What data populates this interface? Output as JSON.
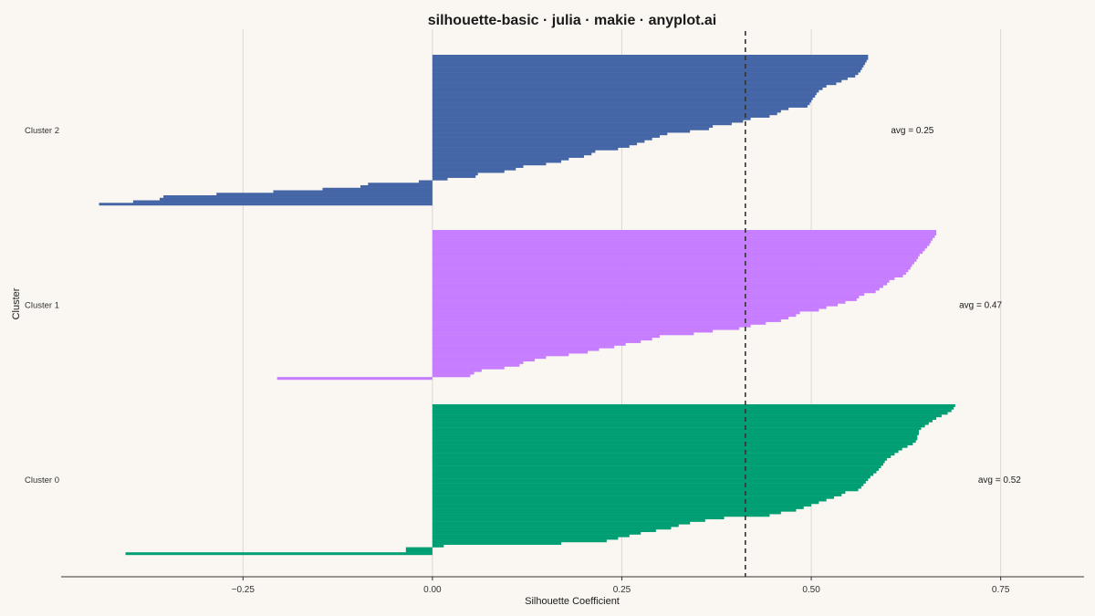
{
  "chart_data": {
    "type": "bar",
    "orientation": "horizontal",
    "title": "silhouette-basic · julia · makie · anyplot.ai",
    "xlabel": "Silhouette Coefficient",
    "ylabel": "Cluster",
    "xlim": [
      -0.49,
      0.86
    ],
    "xticks": [
      -0.25,
      0.0,
      0.25,
      0.5,
      0.75
    ],
    "xtick_labels": [
      "−0.25",
      "0.00",
      "0.25",
      "0.50",
      "0.75"
    ],
    "grid": "vertical",
    "overall_average": 0.413,
    "clusters": [
      {
        "label": "Cluster 2",
        "color": "#4466A6",
        "avg_label": "avg = 0.25",
        "values": [
          0.575,
          0.575,
          0.573,
          0.571,
          0.569,
          0.567,
          0.565,
          0.562,
          0.558,
          0.548,
          0.54,
          0.533,
          0.52,
          0.515,
          0.51,
          0.507,
          0.505,
          0.502,
          0.5,
          0.498,
          0.495,
          0.47,
          0.46,
          0.455,
          0.445,
          0.42,
          0.41,
          0.395,
          0.37,
          0.365,
          0.34,
          0.31,
          0.3,
          0.29,
          0.28,
          0.27,
          0.26,
          0.245,
          0.215,
          0.21,
          0.2,
          0.18,
          0.17,
          0.15,
          0.12,
          0.11,
          0.095,
          0.06,
          0.057,
          0.02,
          -0.018,
          -0.085,
          -0.095,
          -0.145,
          -0.21,
          -0.285,
          -0.355,
          -0.36,
          -0.395,
          -0.44
        ]
      },
      {
        "label": "Cluster 1",
        "color": "#C77DFF",
        "avg_label": "avg = 0.47",
        "values": [
          0.665,
          0.665,
          0.663,
          0.66,
          0.658,
          0.656,
          0.653,
          0.65,
          0.647,
          0.643,
          0.641,
          0.639,
          0.636,
          0.633,
          0.631,
          0.628,
          0.625,
          0.621,
          0.61,
          0.603,
          0.6,
          0.595,
          0.59,
          0.585,
          0.57,
          0.563,
          0.56,
          0.545,
          0.535,
          0.52,
          0.51,
          0.485,
          0.48,
          0.47,
          0.46,
          0.44,
          0.42,
          0.405,
          0.37,
          0.345,
          0.3,
          0.29,
          0.275,
          0.255,
          0.24,
          0.22,
          0.205,
          0.18,
          0.15,
          0.135,
          0.12,
          0.115,
          0.095,
          0.065,
          0.055,
          0.05,
          -0.205
        ]
      },
      {
        "label": "Cluster 0",
        "color": "#009E73",
        "avg_label": "avg = 0.52",
        "values": [
          0.69,
          0.688,
          0.685,
          0.68,
          0.672,
          0.665,
          0.66,
          0.655,
          0.65,
          0.645,
          0.642,
          0.642,
          0.64,
          0.64,
          0.638,
          0.634,
          0.627,
          0.62,
          0.615,
          0.61,
          0.605,
          0.6,
          0.597,
          0.595,
          0.592,
          0.589,
          0.586,
          0.582,
          0.578,
          0.575,
          0.572,
          0.569,
          0.566,
          0.562,
          0.545,
          0.54,
          0.53,
          0.52,
          0.51,
          0.5,
          0.49,
          0.48,
          0.46,
          0.445,
          0.385,
          0.36,
          0.34,
          0.325,
          0.315,
          0.295,
          0.275,
          0.26,
          0.245,
          0.23,
          0.17,
          0.015,
          -0.035,
          -0.035,
          -0.405
        ]
      }
    ]
  }
}
